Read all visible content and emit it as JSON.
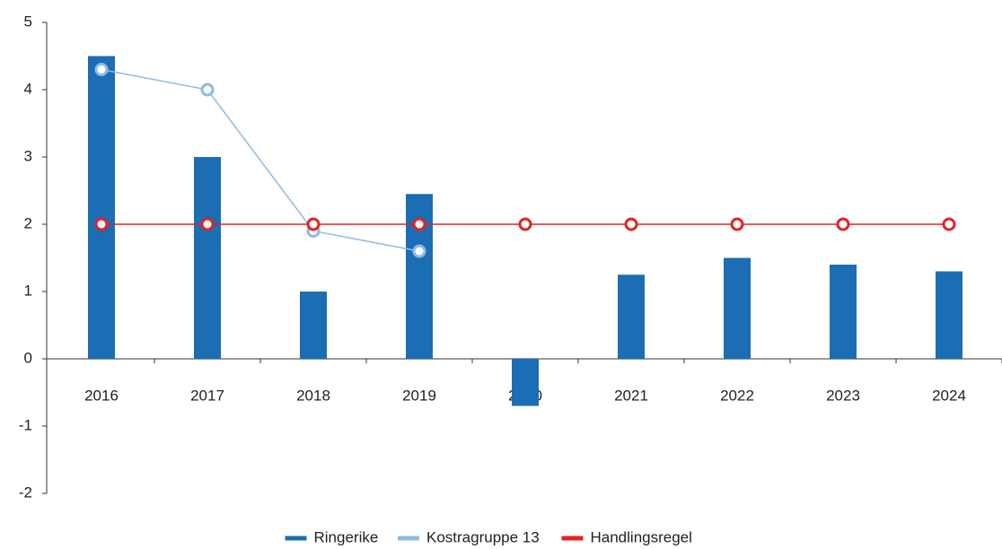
{
  "chart_data": {
    "type": "bar",
    "categories": [
      "2016",
      "2017",
      "2018",
      "2019",
      "2020",
      "2021",
      "2022",
      "2023",
      "2024"
    ],
    "series": [
      {
        "name": "Ringerike",
        "type": "bar",
        "color": "#1b6db4",
        "values": [
          4.5,
          3.0,
          1.0,
          2.45,
          -0.7,
          1.25,
          1.5,
          1.4,
          1.3
        ]
      },
      {
        "name": "Kostragruppe 13",
        "type": "line",
        "color": "#8fbbe0",
        "values": [
          4.3,
          4.0,
          1.9,
          1.6,
          null,
          null,
          null,
          null,
          null
        ]
      },
      {
        "name": "Handlingsregel",
        "type": "line",
        "color": "#e02424",
        "values": [
          2,
          2,
          2,
          2,
          2,
          2,
          2,
          2,
          2
        ]
      }
    ],
    "ylim": [
      -2,
      5
    ],
    "yticks": [
      -2,
      -1,
      0,
      1,
      2,
      3,
      4,
      5
    ],
    "legend": "bottom"
  }
}
